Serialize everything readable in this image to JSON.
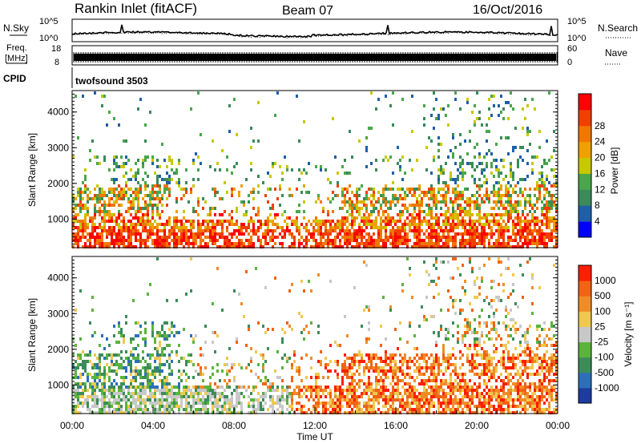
{
  "header": {
    "station": "Rankin Inlet (fitACF)",
    "beam": "Beam 07",
    "date": "16/Oct/2016"
  },
  "strip_labels": {
    "nsky": "N.Sky",
    "nsearch": "N.Search",
    "freq_line1": "Freq.",
    "freq_line2": "[MHz]",
    "nave": "Nave",
    "cpid": "CPID",
    "cpid_value": "twofsound 3503"
  },
  "strip_ticks": {
    "noise_left": [
      "10^5",
      "10^0"
    ],
    "noise_right": [
      "10^5",
      "10^0"
    ],
    "freq_left": [
      "18",
      "8"
    ],
    "nave_right": [
      "60",
      "0"
    ]
  },
  "colors": {
    "power_scale": [
      "#0000ff",
      "#1f5fa8",
      "#3a8a5a",
      "#4aa64a",
      "#c8c800",
      "#f0a000",
      "#f07800",
      "#f04000",
      "#ff0000"
    ],
    "velocity_scale": [
      "#1c3ca0",
      "#2d6fb8",
      "#3c8c5a",
      "#5ab43c",
      "#c8c8c8",
      "#f0c850",
      "#f08c28",
      "#f06414",
      "#ff1e00"
    ]
  },
  "chart_data": [
    {
      "type": "heatmap",
      "name": "power",
      "ylabel": "Slant Range [km]",
      "yticks": [
        1000,
        2000,
        3000,
        4000
      ],
      "ylim": [
        200,
        4600
      ],
      "colorbar_label": "Power [dB]",
      "colorbar_ticks": [
        "4",
        "8",
        "12",
        "16",
        "20",
        "24",
        "28"
      ]
    },
    {
      "type": "heatmap",
      "name": "velocity",
      "ylabel": "Slant Range [km]",
      "yticks": [
        1000,
        2000,
        3000,
        4000
      ],
      "ylim": [
        200,
        4600
      ],
      "colorbar_label": "Velocity [m s⁻¹]",
      "colorbar_ticks": [
        "1000",
        "500",
        "100",
        "25",
        "-25",
        "-100",
        "-500",
        "-1000"
      ],
      "xlabel": "Time UT",
      "xticks": [
        "00:00",
        "04:00",
        "08:00",
        "12:00",
        "16:00",
        "20:00",
        "00:00"
      ]
    }
  ]
}
